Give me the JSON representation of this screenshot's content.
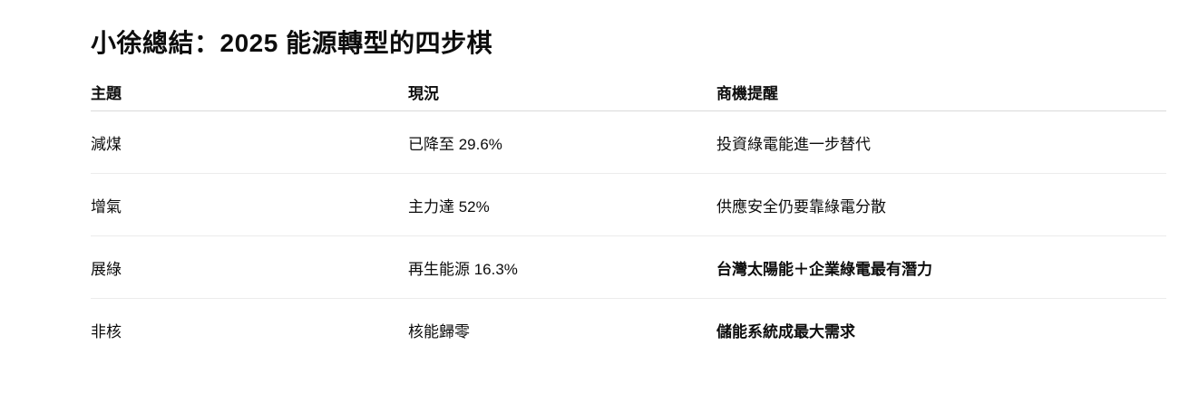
{
  "title": "小徐總結：2025 能源轉型的四步棋",
  "table": {
    "headers": [
      "主題",
      "現況",
      "商機提醒"
    ],
    "rows": [
      {
        "cells": [
          "減煤",
          "已降至 29.6%",
          "投資綠電能進一步替代"
        ],
        "highlight": false
      },
      {
        "cells": [
          "增氣",
          "主力達 52%",
          "供應安全仍要靠綠電分散"
        ],
        "highlight": false
      },
      {
        "cells": [
          "展綠",
          "再生能源 16.3%",
          "台灣太陽能＋企業綠電最有潛力"
        ],
        "highlight": true
      },
      {
        "cells": [
          "非核",
          "核能歸零",
          "儲能系統成最大需求"
        ],
        "highlight": true
      }
    ]
  }
}
